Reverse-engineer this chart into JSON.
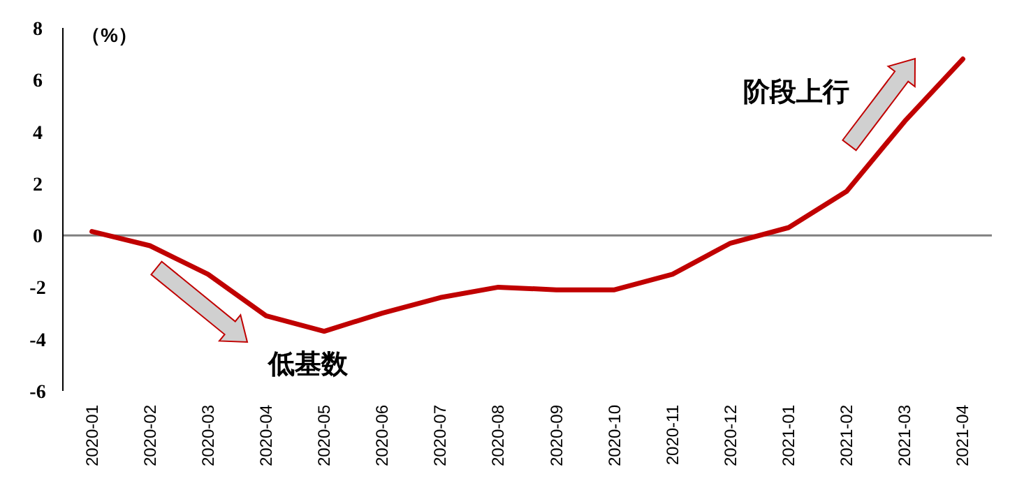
{
  "chart_data": {
    "type": "line",
    "ylabel": "（%）",
    "categories": [
      "2020-01",
      "2020-02",
      "2020-03",
      "2020-04",
      "2020-05",
      "2020-06",
      "2020-07",
      "2020-08",
      "2020-09",
      "2020-10",
      "2020-11",
      "2020-12",
      "2021-01",
      "2021-02",
      "2021-03",
      "2021-04"
    ],
    "series": [
      {
        "color": "#c00000",
        "values": [
          0.15,
          -0.4,
          -1.5,
          -3.1,
          -3.7,
          -3.0,
          -2.4,
          -2.0,
          -2.1,
          -2.1,
          -1.5,
          -0.3,
          0.3,
          1.7,
          4.4,
          6.8
        ]
      }
    ],
    "ylim": [
      -6,
      8
    ],
    "yticks": [
      -6,
      -4,
      -2,
      0,
      2,
      4,
      6,
      8
    ],
    "annotations": [
      "低基数",
      "阶段上行"
    ],
    "marker": "none",
    "line_style": "solid"
  }
}
